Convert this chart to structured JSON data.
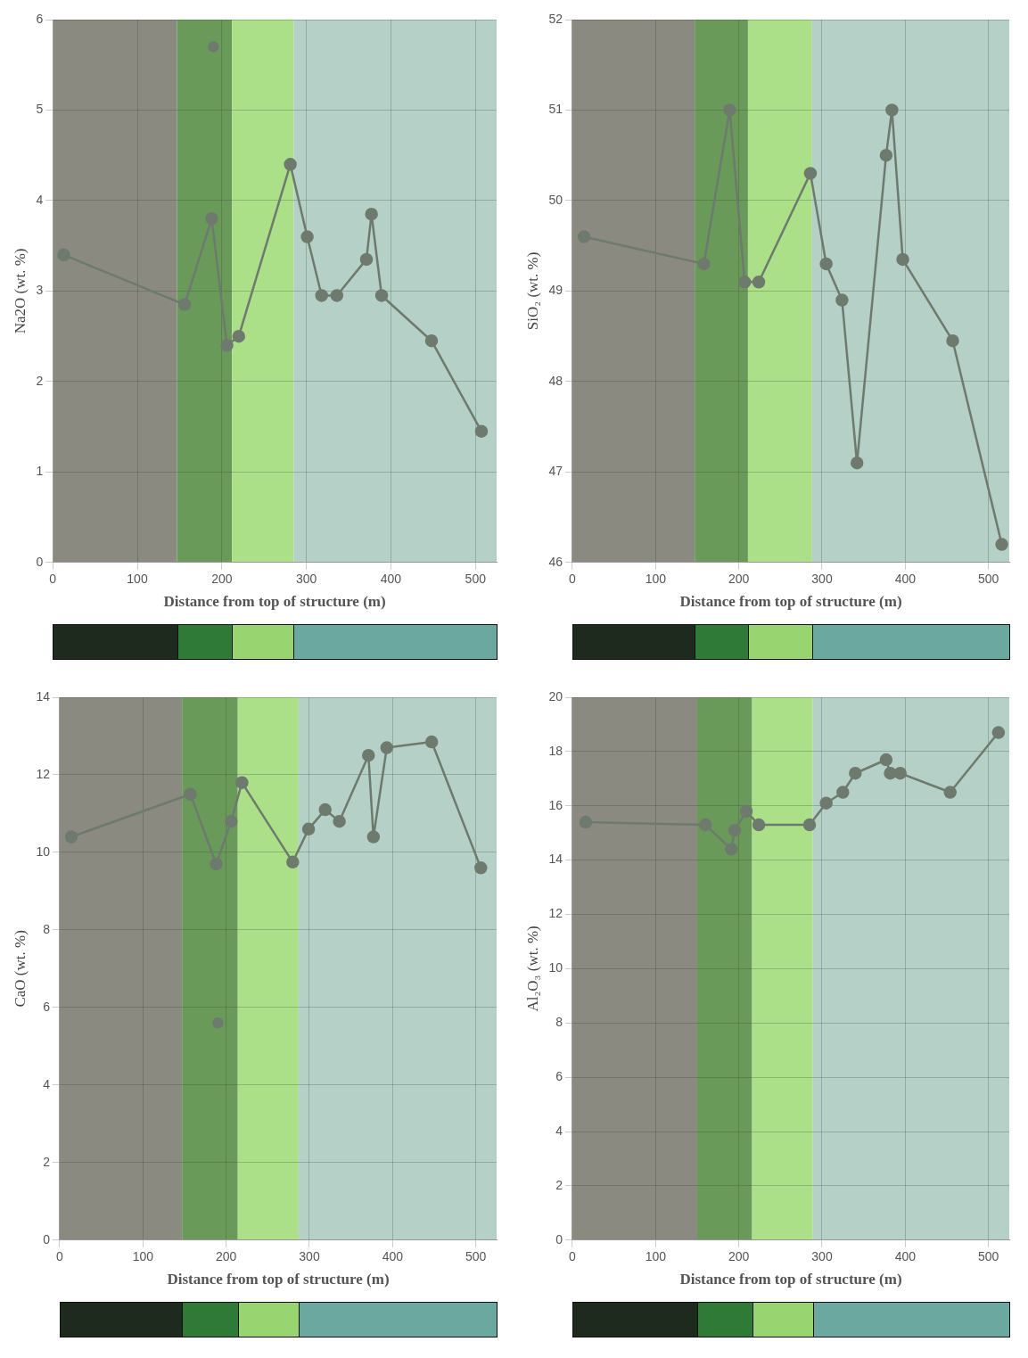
{
  "chart_data": [
    {
      "type": "line",
      "xlabel": "Distance from top of structure (m)",
      "ylabel": "Na2O (wt. %)",
      "xlim": [
        0,
        525
      ],
      "xticks": [
        0,
        100,
        200,
        300,
        400,
        500
      ],
      "ylim": [
        0,
        6
      ],
      "yticks": [
        0,
        1,
        2,
        3,
        4,
        5,
        6
      ],
      "grid": true,
      "legend": false,
      "marker": "circle",
      "bands": [
        {
          "axis": "x",
          "from": 0,
          "to": 147,
          "color": "#8a8a80"
        },
        {
          "axis": "x",
          "from": 147,
          "to": 212,
          "color": "#6a9a5a"
        },
        {
          "axis": "x",
          "from": 212,
          "to": 285,
          "color": "#abdf88"
        },
        {
          "axis": "x",
          "from": 285,
          "to": 525,
          "color": "#b5d0c6"
        }
      ],
      "series": [
        {
          "color": "#6e7a6e",
          "x": [
            13,
            156,
            188,
            206,
            220,
            281,
            301,
            318,
            336,
            371,
            377,
            389,
            448,
            507
          ],
          "values": [
            3.4,
            2.85,
            3.8,
            2.4,
            2.5,
            4.4,
            3.6,
            2.95,
            2.95,
            3.35,
            3.85,
            2.95,
            2.45,
            1.45
          ]
        },
        {
          "type": "scatter",
          "color": "#6e7a6e",
          "x": [
            190
          ],
          "values": [
            5.7
          ]
        }
      ]
    },
    {
      "type": "line",
      "xlabel": "Distance from top of structure (m)",
      "ylabel": "SiO₂ (wt. %)",
      "xlim": [
        0,
        525
      ],
      "xticks": [
        0,
        100,
        200,
        300,
        400,
        500
      ],
      "ylim": [
        46,
        52
      ],
      "yticks": [
        46,
        47,
        48,
        49,
        50,
        51,
        52
      ],
      "grid": true,
      "legend": false,
      "marker": "circle",
      "bands": [
        {
          "axis": "x",
          "from": 0,
          "to": 147,
          "color": "#8a8a80"
        },
        {
          "axis": "x",
          "from": 147,
          "to": 211,
          "color": "#6a9a5a"
        },
        {
          "axis": "x",
          "from": 211,
          "to": 288,
          "color": "#abdf88"
        },
        {
          "axis": "x",
          "from": 288,
          "to": 525,
          "color": "#b5d0c6"
        }
      ],
      "series": [
        {
          "color": "#6e7a6e",
          "x": [
            14,
            158,
            189,
            207,
            224,
            286,
            305,
            324,
            342,
            377,
            384,
            397,
            457,
            516
          ],
          "values": [
            49.6,
            49.3,
            51.0,
            49.1,
            49.1,
            50.3,
            49.3,
            48.9,
            47.1,
            50.5,
            51.0,
            49.35,
            48.45,
            46.2
          ]
        }
      ]
    },
    {
      "type": "line",
      "xlabel": "Distance from top of structure (m)",
      "ylabel": "CaO (wt. %)",
      "xlim": [
        0,
        525
      ],
      "xticks": [
        0,
        100,
        200,
        300,
        400,
        500
      ],
      "ylim": [
        0,
        14
      ],
      "yticks": [
        0,
        2,
        4,
        6,
        8,
        10,
        12,
        14
      ],
      "grid": true,
      "legend": false,
      "marker": "circle",
      "bands": [
        {
          "axis": "x",
          "from": 0,
          "to": 147,
          "color": "#8a8a80"
        },
        {
          "axis": "x",
          "from": 147,
          "to": 214,
          "color": "#6a9a5a"
        },
        {
          "axis": "x",
          "from": 214,
          "to": 287,
          "color": "#abdf88"
        },
        {
          "axis": "x",
          "from": 287,
          "to": 525,
          "color": "#b5d0c6"
        }
      ],
      "series": [
        {
          "color": "#6e7a6e",
          "x": [
            14,
            157,
            188,
            206,
            219,
            280,
            299,
            319,
            336,
            371,
            377,
            393,
            447,
            506
          ],
          "values": [
            10.4,
            11.5,
            9.7,
            10.8,
            11.8,
            9.75,
            10.6,
            11.1,
            10.8,
            12.5,
            10.4,
            12.7,
            12.85,
            9.6
          ]
        },
        {
          "type": "scatter",
          "color": "#6e7a6e",
          "x": [
            190
          ],
          "values": [
            5.6
          ]
        }
      ]
    },
    {
      "type": "line",
      "xlabel": "Distance from top of structure (m)",
      "ylabel": "Al₂O₃ (wt. %)",
      "xlim": [
        0,
        525
      ],
      "xticks": [
        0,
        100,
        200,
        300,
        400,
        500
      ],
      "ylim": [
        0,
        20
      ],
      "yticks": [
        0,
        2,
        4,
        6,
        8,
        10,
        12,
        14,
        16,
        18,
        20
      ],
      "grid": true,
      "legend": false,
      "marker": "circle",
      "bands": [
        {
          "axis": "x",
          "from": 0,
          "to": 150,
          "color": "#8a8a80"
        },
        {
          "axis": "x",
          "from": 150,
          "to": 216,
          "color": "#6a9a5a"
        },
        {
          "axis": "x",
          "from": 216,
          "to": 289,
          "color": "#abdf88"
        },
        {
          "axis": "x",
          "from": 289,
          "to": 525,
          "color": "#b5d0c6"
        }
      ],
      "series": [
        {
          "color": "#6e7a6e",
          "x": [
            16,
            160,
            191,
            195,
            209,
            224,
            285,
            305,
            325,
            340,
            377,
            382,
            394,
            454,
            512
          ],
          "values": [
            15.4,
            15.3,
            14.4,
            15.1,
            15.8,
            15.3,
            15.3,
            16.1,
            16.5,
            17.2,
            17.7,
            17.2,
            17.2,
            16.5,
            18.7
          ]
        }
      ]
    }
  ]
}
